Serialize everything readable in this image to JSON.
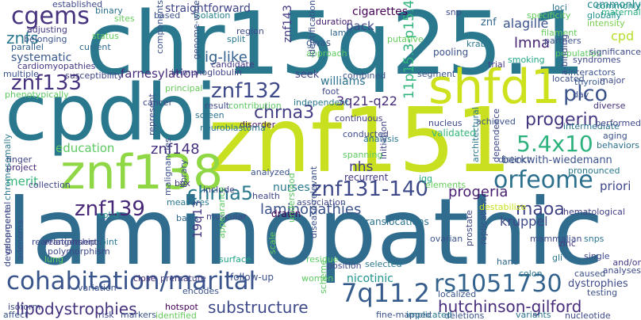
{
  "words": [
    {
      "text": "laminopathic",
      "color": "#2f6c8e",
      "orientation": "horizontal"
    },
    {
      "text": "chr15q25.1",
      "color": "#29788e",
      "orientation": "horizontal"
    },
    {
      "text": "znf151",
      "color": "#c8e020",
      "orientation": "horizontal"
    },
    {
      "text": "cpdbi",
      "color": "#2a788e",
      "orientation": "horizontal"
    },
    {
      "text": "shfd1",
      "color": "#cde11d",
      "orientation": "horizontal"
    },
    {
      "text": "znf138",
      "color": "#8fd744",
      "orientation": "horizontal"
    },
    {
      "text": "cohabitation/marital",
      "color": "#3a548c",
      "orientation": "horizontal"
    },
    {
      "text": "rs1051730",
      "color": "#33628d",
      "orientation": "horizontal"
    },
    {
      "text": "7q11.2",
      "color": "#365c8d",
      "orientation": "horizontal"
    },
    {
      "text": "cgems",
      "color": "#46327e",
      "orientation": "horizontal"
    },
    {
      "text": "orfeome",
      "color": "#2d708e",
      "orientation": "horizontal"
    },
    {
      "text": "5.4x10",
      "color": "#2db27d",
      "orientation": "horizontal"
    },
    {
      "text": "plco",
      "color": "#3b528b",
      "orientation": "horizontal"
    },
    {
      "text": "znf131-140",
      "color": "#3e4989",
      "orientation": "horizontal"
    },
    {
      "text": "znf133",
      "color": "#46317e",
      "orientation": "horizontal"
    },
    {
      "text": "znf132",
      "color": "#3e4a89",
      "orientation": "horizontal"
    },
    {
      "text": "znf139",
      "color": "#482878",
      "orientation": "horizontal"
    },
    {
      "text": "chrna5",
      "color": "#2a788e",
      "orientation": "horizontal"
    },
    {
      "text": "chrna3",
      "color": "#433e85",
      "orientation": "horizontal"
    },
    {
      "text": "progerin",
      "color": "#453882",
      "orientation": "horizontal"
    },
    {
      "text": "lipodystrophies",
      "color": "#46327e",
      "orientation": "horizontal"
    },
    {
      "text": "hutchinson-gilford",
      "color": "#472d7b",
      "orientation": "horizontal"
    },
    {
      "text": "substructure",
      "color": "#3e4a89",
      "orientation": "horizontal"
    },
    {
      "text": "laminopathies",
      "color": "#3b528b",
      "orientation": "horizontal"
    },
    {
      "text": "maoa",
      "color": "#414487",
      "orientation": "horizontal"
    },
    {
      "text": "progeria",
      "color": "#481f70",
      "orientation": "horizontal"
    },
    {
      "text": "znf148",
      "color": "#46307e",
      "orientation": "horizontal"
    },
    {
      "text": "11p15.3-p15.4",
      "color": "#2fb47c",
      "orientation": "vertical"
    },
    {
      "text": "3q21-q22",
      "color": "#472d7b",
      "orientation": "horizontal"
    },
    {
      "text": "farnesylation",
      "color": "#472c7a",
      "orientation": "horizontal"
    },
    {
      "text": "znfs",
      "color": "#2a778e",
      "orientation": "horizontal"
    },
    {
      "text": "ig-like",
      "color": "#34608d",
      "orientation": "horizontal"
    },
    {
      "text": "lmna",
      "color": "#482475",
      "orientation": "horizontal"
    },
    {
      "text": "alagille",
      "color": "#3b528b",
      "orientation": "horizontal"
    },
    {
      "text": "nhs",
      "color": "#433d84",
      "orientation": "horizontal"
    },
    {
      "text": "nicotinic",
      "color": "#20938c",
      "orientation": "horizontal"
    },
    {
      "text": "education",
      "color": "#5ec962",
      "orientation": "horizontal"
    },
    {
      "text": "kruppel",
      "color": "#3e4989",
      "orientation": "horizontal"
    },
    {
      "text": "19q13",
      "color": "#453781",
      "orientation": "vertical"
    },
    {
      "text": "straightforward",
      "color": "#404588",
      "orientation": "horizontal"
    },
    {
      "text": "cigarettes",
      "color": "#440154",
      "orientation": "horizontal"
    },
    {
      "text": "systematic",
      "color": "#38588c",
      "orientation": "horizontal"
    },
    {
      "text": "williams",
      "color": "#2c718e",
      "orientation": "horizontal"
    },
    {
      "text": "priori",
      "color": "#3f4788",
      "orientation": "horizontal"
    },
    {
      "text": "beckwith-wiedemann",
      "color": "#3b528b",
      "orientation": "horizontal"
    },
    {
      "text": "cpd",
      "color": "#b5de2b",
      "orientation": "horizontal"
    },
    {
      "text": "pack",
      "color": "#3f4788",
      "orientation": "horizontal"
    },
    {
      "text": "znf143",
      "color": "#443a83",
      "orientation": "vertical"
    },
    {
      "text": "merit",
      "color": "#35b779",
      "orientation": "horizontal"
    },
    {
      "text": "dystrophies",
      "color": "#3e4a89",
      "orientation": "horizontal"
    },
    {
      "text": "nurses",
      "color": "#2a788e",
      "orientation": "horizontal"
    },
    {
      "text": "seek",
      "color": "#414487",
      "orientation": "horizontal"
    },
    {
      "text": "maternal",
      "color": "#29af7f",
      "orientation": "horizontal"
    },
    {
      "text": "translocations",
      "color": "#2c718e",
      "orientation": "horizontal"
    },
    {
      "text": "gwas",
      "color": "#39568c",
      "orientation": "horizontal"
    },
    {
      "text": "recurrent",
      "color": "#443983",
      "orientation": "horizontal"
    },
    {
      "text": "znf",
      "color": "#31688e",
      "orientation": "horizontal"
    },
    {
      "text": "validated",
      "color": "#35b779",
      "orientation": "horizontal"
    },
    {
      "text": "follow-up",
      "color": "#3b528b",
      "orientation": "horizontal"
    },
    {
      "text": "adjusting",
      "color": "#443983",
      "orientation": "horizontal"
    },
    {
      "text": "belonging",
      "color": "#3a548c",
      "orientation": "horizontal"
    },
    {
      "text": "parallel",
      "color": "#34618d",
      "orientation": "horizontal"
    },
    {
      "text": "cardiomyopathies",
      "color": "#453781",
      "orientation": "horizontal"
    },
    {
      "text": "isolation",
      "color": "#26828e",
      "orientation": "horizontal"
    },
    {
      "text": "current",
      "color": "#31688e",
      "orientation": "horizontal"
    },
    {
      "text": "binary",
      "color": "#2c728e",
      "orientation": "horizontal"
    },
    {
      "text": "lamin",
      "color": "#31688e",
      "orientation": "horizontal"
    },
    {
      "text": "duration",
      "color": "#482071",
      "orientation": "horizontal"
    },
    {
      "text": "pooling",
      "color": "#3b528b",
      "orientation": "horizontal"
    },
    {
      "text": "trial",
      "color": "#433d84",
      "orientation": "horizontal"
    },
    {
      "text": "smoking",
      "color": "#21a685",
      "orientation": "horizontal"
    },
    {
      "text": "interactors",
      "color": "#3a548c",
      "orientation": "horizontal"
    },
    {
      "text": "syndromes",
      "color": "#3e4a89",
      "orientation": "horizontal"
    },
    {
      "text": "thyroid",
      "color": "#375b8d",
      "orientation": "horizontal"
    },
    {
      "text": "commonly",
      "color": "#23898e",
      "orientation": "horizontal"
    },
    {
      "text": "globally",
      "color": "#21918c",
      "orientation": "horizontal"
    },
    {
      "text": "intensity",
      "color": "#7ad151",
      "orientation": "horizontal"
    },
    {
      "text": "filament",
      "color": "#67cc5c",
      "orientation": "horizontal"
    },
    {
      "text": "partners",
      "color": "#3b528b",
      "orientation": "horizontal"
    },
    {
      "text": "diverse",
      "color": "#46327e",
      "orientation": "horizontal"
    },
    {
      "text": "intermediate",
      "color": "#2b748e",
      "orientation": "horizontal"
    },
    {
      "text": "aging",
      "color": "#3b528b",
      "orientation": "horizontal"
    },
    {
      "text": "behaviors",
      "color": "#2d708e",
      "orientation": "horizontal"
    },
    {
      "text": "pronounced",
      "color": "#2a788e",
      "orientation": "horizontal"
    },
    {
      "text": "distinct",
      "color": "#3b528b",
      "orientation": "horizontal"
    },
    {
      "text": "zinc",
      "color": "#453781",
      "orientation": "horizontal"
    },
    {
      "text": "snps",
      "color": "#2b758e",
      "orientation": "horizontal"
    },
    {
      "text": "single",
      "color": "#3e4989",
      "orientation": "horizontal"
    },
    {
      "text": "hematological",
      "color": "#424186",
      "orientation": "horizontal"
    },
    {
      "text": "testing",
      "color": "#3b528b",
      "orientation": "horizontal"
    },
    {
      "text": "hand",
      "color": "#31688e",
      "orientation": "horizontal"
    },
    {
      "text": "colon",
      "color": "#2a788e",
      "orientation": "horizontal"
    },
    {
      "text": "women",
      "color": "#5ec962",
      "orientation": "horizontal"
    },
    {
      "text": "premature",
      "color": "#433e85",
      "orientation": "horizontal"
    },
    {
      "text": "close",
      "color": "#472c7a",
      "orientation": "horizontal"
    },
    {
      "text": "surface",
      "color": "#20a486",
      "orientation": "horizontal"
    },
    {
      "text": "isoform",
      "color": "#3e4a89",
      "orientation": "horizontal"
    },
    {
      "text": "hotspot",
      "color": "#440154",
      "orientation": "horizontal"
    },
    {
      "text": "variation",
      "color": "#3a548c",
      "orientation": "horizontal"
    },
    {
      "text": "rearrangements",
      "color": "#3e4989",
      "orientation": "horizontal"
    },
    {
      "text": "joint",
      "color": "#2a788e",
      "orientation": "horizontal"
    },
    {
      "text": "solid",
      "color": "#21918c",
      "orientation": "horizontal"
    },
    {
      "text": "muscular",
      "color": "#404588",
      "orientation": "horizontal"
    },
    {
      "text": "basis",
      "color": "#31688e",
      "orientation": "horizontal"
    },
    {
      "text": "measures",
      "color": "#2a788e",
      "orientation": "horizontal"
    },
    {
      "text": "include",
      "color": "#414487",
      "orientation": "horizontal"
    },
    {
      "text": "health",
      "color": "#414487",
      "orientation": "horizontal"
    },
    {
      "text": "drawn",
      "color": "#440154",
      "orientation": "horizontal"
    },
    {
      "text": "association",
      "color": "#3e4989",
      "orientation": "horizontal"
    },
    {
      "text": "box",
      "color": "#453781",
      "orientation": "horizontal"
    },
    {
      "text": "screen",
      "color": "#2c718e",
      "orientation": "horizontal"
    },
    {
      "text": "disorder",
      "color": "#471365",
      "orientation": "horizontal"
    },
    {
      "text": "neuroblastoma",
      "color": "#2a778e",
      "orientation": "horizontal"
    },
    {
      "text": "finger",
      "color": "#414487",
      "orientation": "horizontal"
    },
    {
      "text": "project",
      "color": "#482878",
      "orientation": "horizontal"
    },
    {
      "text": "collection",
      "color": "#3f4788",
      "orientation": "horizontal"
    },
    {
      "text": "immunoglobulin",
      "color": "#404588",
      "orientation": "horizontal"
    },
    {
      "text": "candidate",
      "color": "#443a83",
      "orientation": "horizontal"
    },
    {
      "text": "split",
      "color": "#2a778e",
      "orientation": "horizontal"
    },
    {
      "text": "foot",
      "color": "#3e4989",
      "orientation": "horizontal"
    },
    {
      "text": "continuous",
      "color": "#424186",
      "orientation": "horizontal"
    },
    {
      "text": "segment",
      "color": "#3a548c",
      "orientation": "horizontal"
    },
    {
      "text": "conducted",
      "color": "#3e4a89",
      "orientation": "horizontal"
    },
    {
      "text": "achieved",
      "color": "#3b528b",
      "orientation": "horizontal"
    },
    {
      "text": "igg",
      "color": "#27ad81",
      "orientation": "horizontal"
    },
    {
      "text": "spanning",
      "color": "#5ec962",
      "orientation": "horizontal"
    },
    {
      "text": "krab",
      "color": "#2a788e",
      "orientation": "horizontal"
    },
    {
      "text": "snp",
      "color": "#3e4a89",
      "orientation": "horizontal"
    },
    {
      "text": "loci",
      "color": "#2c728e",
      "orientation": "horizontal"
    },
    {
      "text": "ovarian",
      "color": "#3a548c",
      "orientation": "horizontal"
    },
    {
      "text": "mammalian",
      "color": "#3e4a89",
      "orientation": "horizontal"
    },
    {
      "text": "gli",
      "color": "#2a788e",
      "orientation": "horizontal"
    },
    {
      "text": "caused",
      "color": "#3b528b",
      "orientation": "horizontal"
    },
    {
      "text": "analyses",
      "color": "#3e4989",
      "orientation": "horizontal"
    },
    {
      "text": "and/or",
      "color": "#443a83",
      "orientation": "horizontal"
    },
    {
      "text": "localized",
      "color": "#3a548c",
      "orientation": "horizontal"
    },
    {
      "text": "fine-mapped",
      "color": "#3b528b",
      "orientation": "horizontal"
    },
    {
      "text": "variants",
      "color": "#2c728e",
      "orientation": "horizontal"
    },
    {
      "text": "deletions",
      "color": "#3b528b",
      "orientation": "horizontal"
    },
    {
      "text": "nucleotide",
      "color": "#3e4989",
      "orientation": "horizontal"
    },
    {
      "text": "implicated",
      "color": "#2a788e",
      "orientation": "horizontal"
    },
    {
      "text": "selected",
      "color": "#2a788e",
      "orientation": "horizontal"
    },
    {
      "text": "position",
      "color": "#3e4989",
      "orientation": "horizontal"
    },
    {
      "text": "markers",
      "color": "#3b528b",
      "orientation": "horizontal"
    },
    {
      "text": "identified",
      "color": "#67cc5c",
      "orientation": "horizontal"
    },
    {
      "text": "risk",
      "color": "#3e4989",
      "orientation": "horizontal"
    },
    {
      "text": "affect",
      "color": "#3b528b",
      "orientation": "horizontal"
    },
    {
      "text": "relationship",
      "color": "#414487",
      "orientation": "horizontal"
    },
    {
      "text": "polymorphism",
      "color": "#3e4989",
      "orientation": "horizontal"
    },
    {
      "text": "encodes",
      "color": "#3b528b",
      "orientation": "horizontal"
    },
    {
      "text": "residue",
      "color": "#5ec962",
      "orientation": "horizontal"
    },
    {
      "text": "analysis",
      "color": "#2a788e",
      "orientation": "horizontal"
    },
    {
      "text": "nucleus",
      "color": "#3e4989",
      "orientation": "horizontal"
    },
    {
      "text": "commonly",
      "color": "#21918c",
      "orientation": "horizontal"
    },
    {
      "text": "independent",
      "color": "#2a788e",
      "orientation": "horizontal"
    },
    {
      "text": "combined",
      "color": "#3b528b",
      "orientation": "horizontal"
    },
    {
      "text": "result",
      "color": "#3e4989",
      "orientation": "horizontal"
    },
    {
      "text": "contribution",
      "color": "#5ec962",
      "orientation": "horizontal"
    },
    {
      "text": "principal",
      "color": "#67cc5c",
      "orientation": "horizontal"
    },
    {
      "text": "multiple",
      "color": "#3b528b",
      "orientation": "horizontal"
    },
    {
      "text": "susceptibility",
      "color": "#414487",
      "orientation": "horizontal"
    },
    {
      "text": "phenotypically",
      "color": "#5ec962",
      "orientation": "horizontal"
    },
    {
      "text": "cancer",
      "color": "#3e4989",
      "orientation": "horizontal"
    },
    {
      "text": "status",
      "color": "#67cc5c",
      "orientation": "horizontal"
    },
    {
      "text": "established",
      "color": "#3e4989",
      "orientation": "horizontal"
    },
    {
      "text": "sites",
      "color": "#67cc5c",
      "orientation": "horizontal"
    },
    {
      "text": "based",
      "color": "#3b528b",
      "orientation": "horizontal"
    },
    {
      "text": "region",
      "color": "#3e4989",
      "orientation": "horizontal"
    },
    {
      "text": "approach",
      "color": "#5ec962",
      "orientation": "horizontal"
    },
    {
      "text": "putative",
      "color": "#67cc5c",
      "orientation": "horizontal"
    },
    {
      "text": "population",
      "color": "#5ec962",
      "orientation": "horizontal"
    },
    {
      "text": "specificity",
      "color": "#67cc5c",
      "orientation": "horizontal"
    },
    {
      "text": "significance",
      "color": "#3e4989",
      "orientation": "horizontal"
    },
    {
      "text": "located",
      "color": "#3b528b",
      "orientation": "horizontal"
    },
    {
      "text": "major",
      "color": "#3e4989",
      "orientation": "horizontal"
    },
    {
      "text": "day",
      "color": "#3b528b",
      "orientation": "horizontal"
    },
    {
      "text": "performed",
      "color": "#3e4989",
      "orientation": "horizontal"
    },
    {
      "text": "identification",
      "color": "#3b528b",
      "orientation": "vertical"
    },
    {
      "text": "a-binding",
      "color": "#3e4989",
      "orientation": "vertical"
    },
    {
      "text": "disease-relevant",
      "color": "#3b528b",
      "orientation": "vertical"
    },
    {
      "text": "understood",
      "color": "#5ec962",
      "orientation": "vertical"
    },
    {
      "text": "architectural",
      "color": "#2a788e",
      "orientation": "vertical"
    },
    {
      "text": "replication",
      "color": "#3b528b",
      "orientation": "vertical"
    },
    {
      "text": "prostate",
      "color": "#3e4989",
      "orientation": "vertical"
    },
    {
      "text": "destabilize",
      "color": "#c8e020",
      "orientation": "horizontal"
    },
    {
      "text": "dependence",
      "color": "#3e4989",
      "orientation": "vertical"
    },
    {
      "text": "genome-wide",
      "color": "#3b528b",
      "orientation": "vertical"
    },
    {
      "text": "library",
      "color": "#3e4989",
      "orientation": "vertical"
    },
    {
      "text": "malignancies",
      "color": "#3b528b",
      "orientation": "vertical"
    },
    {
      "text": "chromosomally",
      "color": "#2a788e",
      "orientation": "vertical"
    },
    {
      "text": "gene-gene",
      "color": "#3e4989",
      "orientation": "vertical"
    },
    {
      "text": "adenoma",
      "color": "#3b528b",
      "orientation": "vertical"
    },
    {
      "text": "appearance",
      "color": "#5ec962",
      "orientation": "vertical"
    },
    {
      "text": "scale",
      "color": "#67cc5c",
      "orientation": "vertical"
    },
    {
      "text": "represent",
      "color": "#3e4989",
      "orientation": "vertical"
    },
    {
      "text": "components",
      "color": "#3b528b",
      "orientation": "vertical"
    },
    {
      "text": "developmental",
      "color": "#3e4989",
      "orientation": "vertical"
    },
    {
      "text": "lung",
      "color": "#5ec962",
      "orientation": "horizontal"
    },
    {
      "text": "initiation",
      "color": "#3e4989",
      "orientation": "vertical"
    },
    {
      "text": "elements",
      "color": "#67cc5c",
      "orientation": "horizontal"
    },
    {
      "text": "analyzed",
      "color": "#3b528b",
      "orientation": "horizontal"
    },
    {
      "text": "scheme",
      "color": "#5ec962",
      "orientation": "vertical"
    }
  ]
}
